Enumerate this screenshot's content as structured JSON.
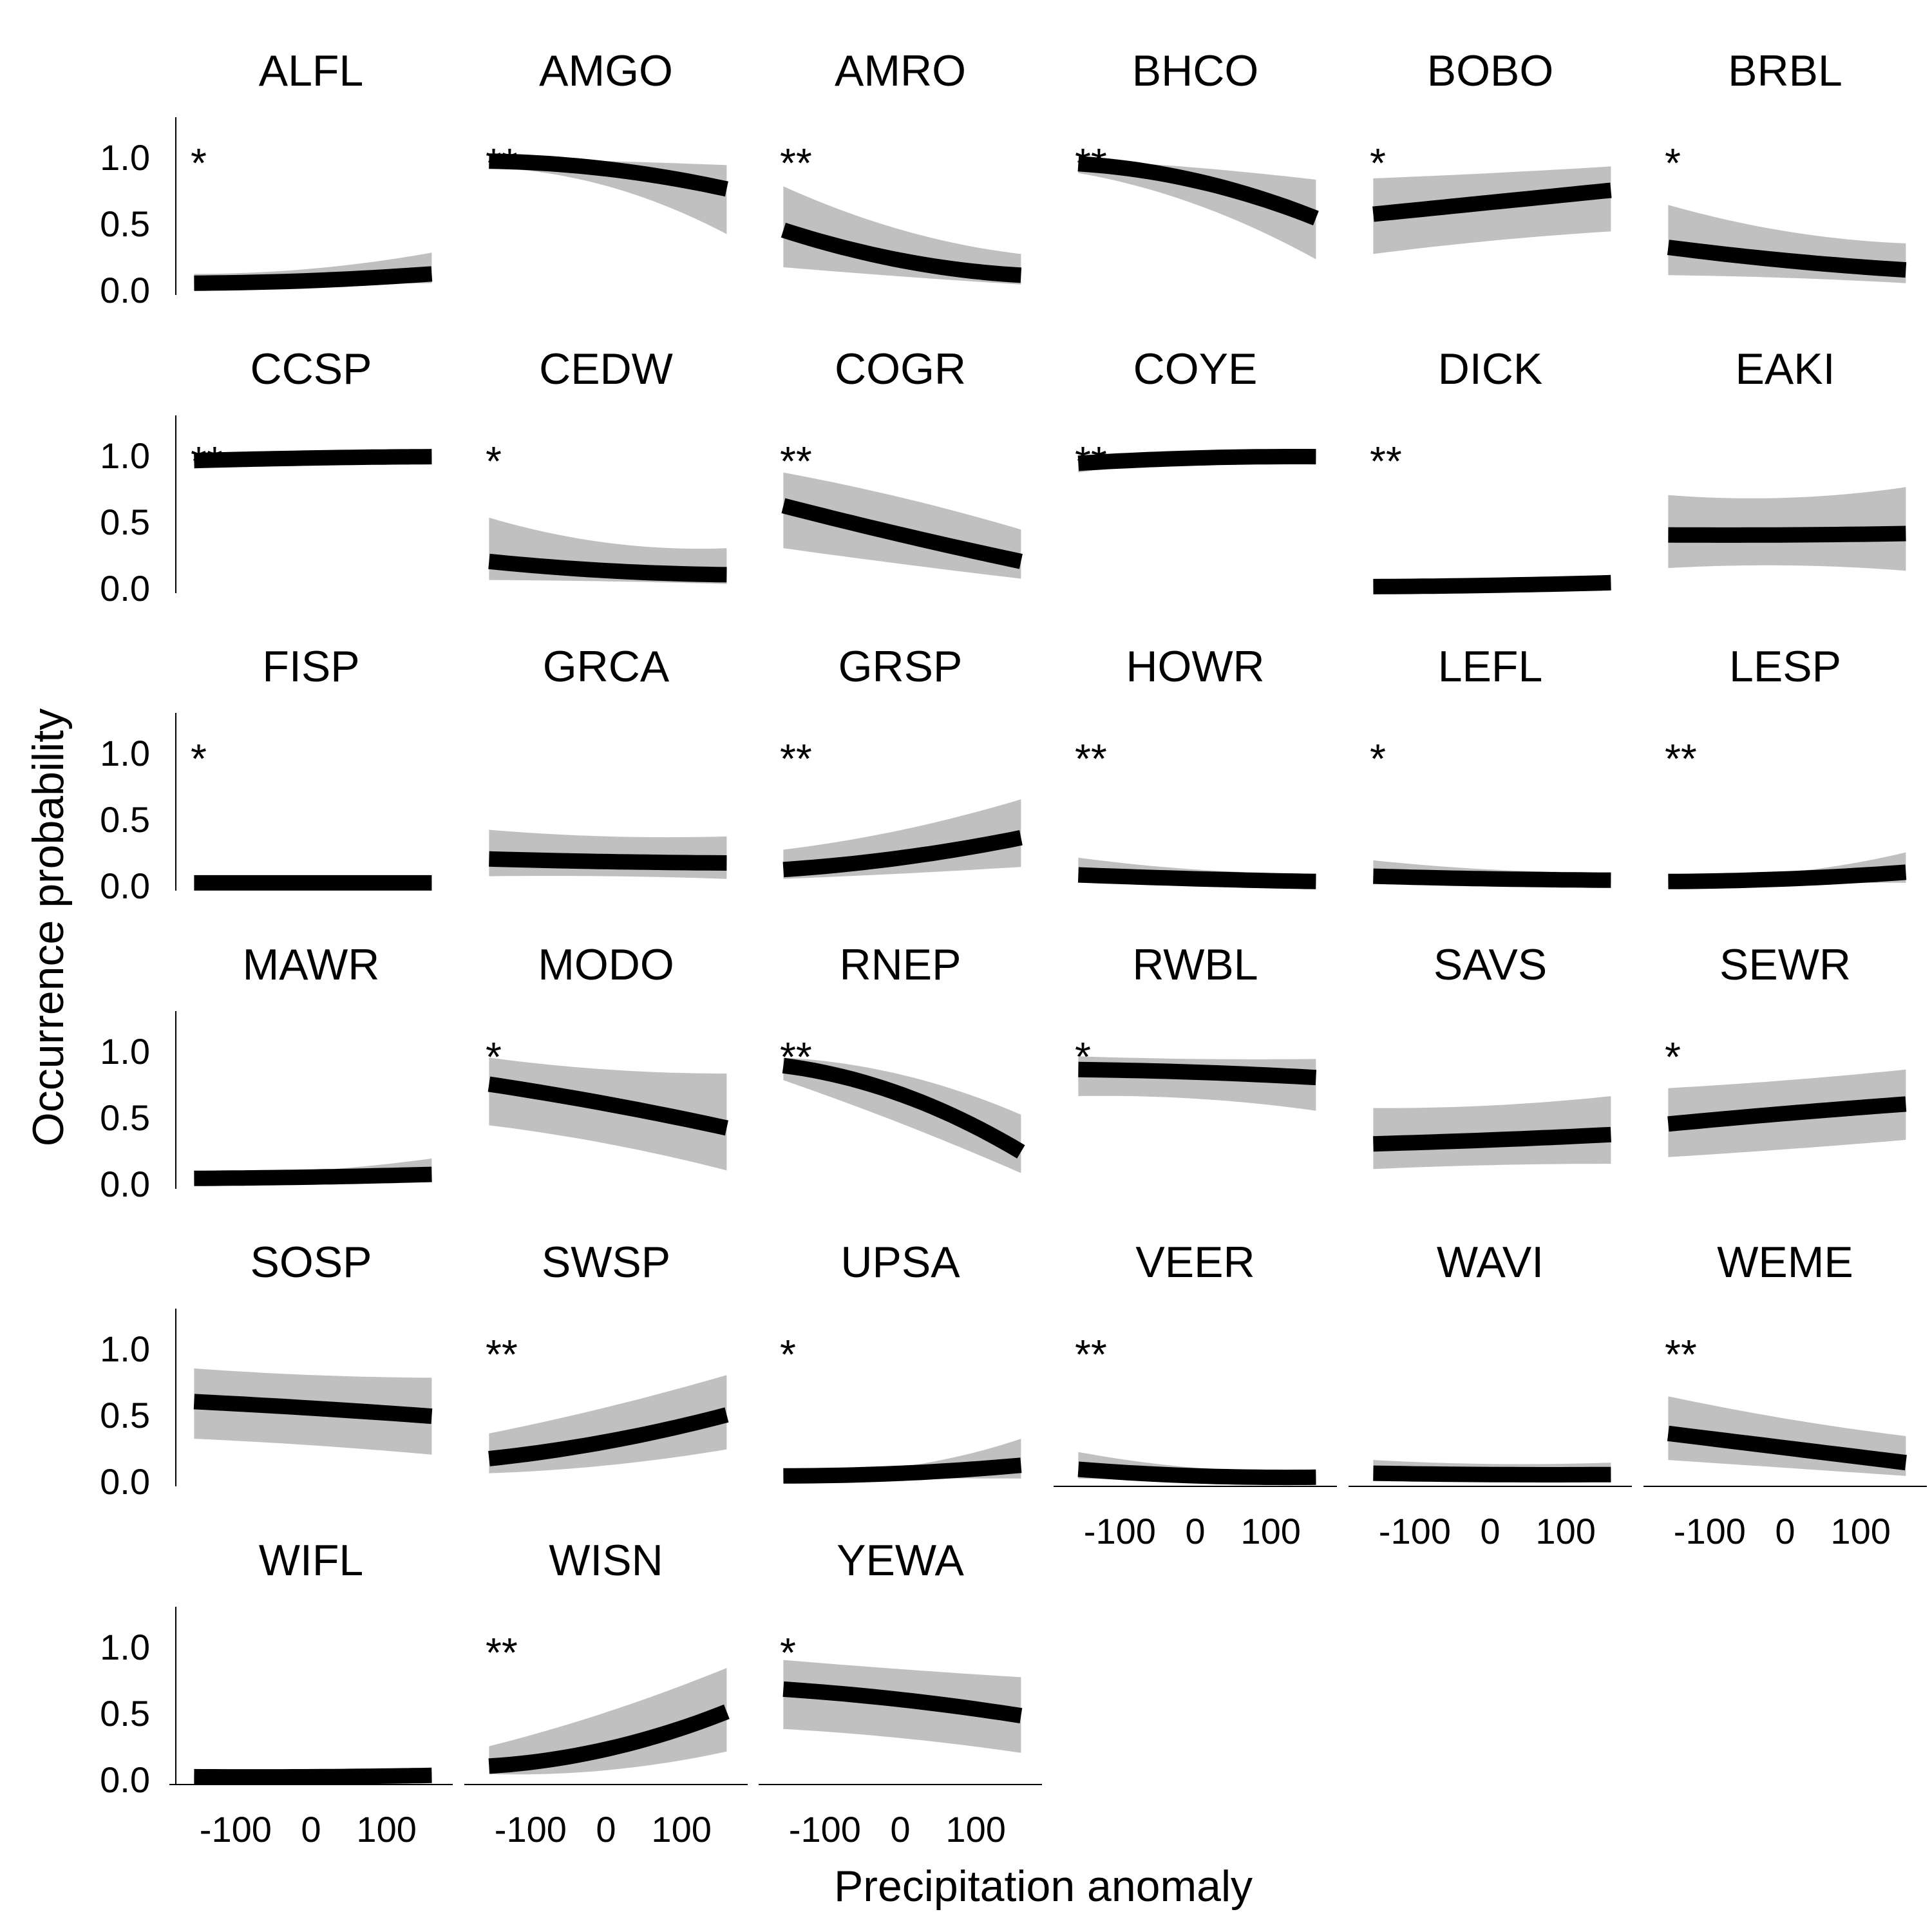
{
  "chart_data": {
    "type": "line",
    "layout": "small-multiples",
    "xlabel": "Precipitation anomaly",
    "ylabel": "Occurrence probability",
    "xlim": [
      -175,
      175
    ],
    "ylim": [
      0,
      1.25
    ],
    "x_ticks": [
      -100,
      0,
      100
    ],
    "x_tick_labels": [
      "-100",
      "0",
      "100"
    ],
    "y_ticks": [
      0,
      0.5,
      1.0
    ],
    "y_tick_labels": [
      "0.0",
      "0.5",
      "1.0"
    ],
    "x_range_plotted": [
      -155,
      160
    ],
    "colors": {
      "fit": "#000000",
      "confidence_band": "#c0c0c0"
    },
    "panels": [
      {
        "species": "ALFL",
        "sig": "*",
        "fit": [
          0.05,
          0.07,
          0.12
        ],
        "lower": [
          0.03,
          0.04,
          0.05
        ],
        "upper": [
          0.12,
          0.16,
          0.28
        ]
      },
      {
        "species": "AMGO",
        "sig": "**",
        "fit": [
          0.97,
          0.91,
          0.76
        ],
        "lower": [
          0.92,
          0.78,
          0.42
        ],
        "upper": [
          0.99,
          0.97,
          0.94
        ]
      },
      {
        "species": "AMRO",
        "sig": "**",
        "fit": [
          0.45,
          0.22,
          0.11
        ],
        "lower": [
          0.17,
          0.1,
          0.04
        ],
        "upper": [
          0.78,
          0.45,
          0.27
        ]
      },
      {
        "species": "BHCO",
        "sig": "**",
        "fit": [
          0.95,
          0.82,
          0.54
        ],
        "lower": [
          0.88,
          0.64,
          0.23
        ],
        "upper": [
          0.98,
          0.92,
          0.83
        ]
      },
      {
        "species": "BOBO",
        "sig": "*",
        "fit": [
          0.57,
          0.66,
          0.75
        ],
        "lower": [
          0.27,
          0.37,
          0.44
        ],
        "upper": [
          0.84,
          0.88,
          0.93
        ]
      },
      {
        "species": "BRBL",
        "sig": "*",
        "fit": [
          0.32,
          0.22,
          0.15
        ],
        "lower": [
          0.11,
          0.09,
          0.05
        ],
        "upper": [
          0.64,
          0.44,
          0.35
        ]
      },
      {
        "species": "CCSP",
        "sig": "**",
        "fit": [
          0.96,
          0.98,
          0.99
        ],
        "lower": [
          0.92,
          0.96,
          0.97
        ],
        "upper": [
          0.98,
          0.99,
          1.0
        ]
      },
      {
        "species": "CEDW",
        "sig": "*",
        "fit": [
          0.2,
          0.13,
          0.1
        ],
        "lower": [
          0.06,
          0.05,
          0.03
        ],
        "upper": [
          0.53,
          0.34,
          0.3
        ]
      },
      {
        "species": "COGR",
        "sig": "**",
        "fit": [
          0.62,
          0.4,
          0.2
        ],
        "lower": [
          0.3,
          0.18,
          0.07
        ],
        "upper": [
          0.87,
          0.68,
          0.44
        ]
      },
      {
        "species": "COYE",
        "sig": "**",
        "fit": [
          0.94,
          0.98,
          0.99
        ],
        "lower": [
          0.87,
          0.96,
          0.97
        ],
        "upper": [
          0.97,
          0.99,
          1.0
        ]
      },
      {
        "species": "DICK",
        "sig": "**",
        "fit": [
          0.01,
          0.02,
          0.04
        ],
        "lower": [
          0.0,
          0.01,
          0.01
        ],
        "upper": [
          0.03,
          0.04,
          0.08
        ]
      },
      {
        "species": "EAKI",
        "sig": "",
        "fit": [
          0.4,
          0.4,
          0.41
        ],
        "lower": [
          0.15,
          0.17,
          0.13
        ],
        "upper": [
          0.7,
          0.68,
          0.76
        ]
      },
      {
        "species": "FISP",
        "sig": "*",
        "fit": [
          0.02,
          0.02,
          0.02
        ],
        "lower": [
          0.0,
          0.0,
          0.0
        ],
        "upper": [
          0.05,
          0.04,
          0.05
        ]
      },
      {
        "species": "GRCA",
        "sig": "",
        "fit": [
          0.2,
          0.18,
          0.17
        ],
        "lower": [
          0.07,
          0.07,
          0.05
        ],
        "upper": [
          0.42,
          0.37,
          0.37
        ]
      },
      {
        "species": "GRSP",
        "sig": "**",
        "fit": [
          0.12,
          0.21,
          0.36
        ],
        "lower": [
          0.05,
          0.09,
          0.14
        ],
        "upper": [
          0.27,
          0.42,
          0.65
        ]
      },
      {
        "species": "HOWR",
        "sig": "**",
        "fit": [
          0.08,
          0.05,
          0.03
        ],
        "lower": [
          0.02,
          0.02,
          0.01
        ],
        "upper": [
          0.21,
          0.12,
          0.09
        ]
      },
      {
        "species": "LEFL",
        "sig": "*",
        "fit": [
          0.07,
          0.05,
          0.04
        ],
        "lower": [
          0.02,
          0.02,
          0.01
        ],
        "upper": [
          0.19,
          0.12,
          0.1
        ]
      },
      {
        "species": "LESP",
        "sig": "**",
        "fit": [
          0.03,
          0.05,
          0.1
        ],
        "lower": [
          0.01,
          0.02,
          0.02
        ],
        "upper": [
          0.08,
          0.1,
          0.25
        ]
      },
      {
        "species": "MAWR",
        "sig": "",
        "fit": [
          0.04,
          0.05,
          0.07
        ],
        "lower": [
          0.02,
          0.02,
          0.02
        ],
        "upper": [
          0.08,
          0.1,
          0.19
        ]
      },
      {
        "species": "MODO",
        "sig": "*",
        "fit": [
          0.75,
          0.6,
          0.42
        ],
        "lower": [
          0.44,
          0.3,
          0.1
        ],
        "upper": [
          0.95,
          0.86,
          0.83
        ]
      },
      {
        "species": "RNEP",
        "sig": "**",
        "fit": [
          0.89,
          0.67,
          0.24
        ],
        "lower": [
          0.78,
          0.45,
          0.08
        ],
        "upper": [
          0.95,
          0.82,
          0.52
        ]
      },
      {
        "species": "RWBL",
        "sig": "*",
        "fit": [
          0.86,
          0.84,
          0.8
        ],
        "lower": [
          0.66,
          0.64,
          0.55
        ],
        "upper": [
          0.96,
          0.94,
          0.94
        ]
      },
      {
        "species": "SAVS",
        "sig": "",
        "fit": [
          0.3,
          0.33,
          0.37
        ],
        "lower": [
          0.11,
          0.14,
          0.15
        ],
        "upper": [
          0.57,
          0.59,
          0.66
        ]
      },
      {
        "species": "SEWR",
        "sig": "*",
        "fit": [
          0.45,
          0.53,
          0.6
        ],
        "lower": [
          0.2,
          0.26,
          0.33
        ],
        "upper": [
          0.72,
          0.78,
          0.86
        ]
      },
      {
        "species": "SOSP",
        "sig": "",
        "fit": [
          0.6,
          0.55,
          0.49
        ],
        "lower": [
          0.32,
          0.27,
          0.2
        ],
        "upper": [
          0.85,
          0.8,
          0.78
        ]
      },
      {
        "species": "SWSP",
        "sig": "**",
        "fit": [
          0.17,
          0.3,
          0.5
        ],
        "lower": [
          0.06,
          0.12,
          0.24
        ],
        "upper": [
          0.36,
          0.56,
          0.8
        ]
      },
      {
        "species": "UPSA",
        "sig": "*",
        "fit": [
          0.04,
          0.06,
          0.12
        ],
        "lower": [
          0.01,
          0.02,
          0.02
        ],
        "upper": [
          0.08,
          0.11,
          0.32
        ]
      },
      {
        "species": "VEER",
        "sig": "**",
        "fit": [
          0.09,
          0.04,
          0.03
        ],
        "lower": [
          0.02,
          0.01,
          0.01
        ],
        "upper": [
          0.22,
          0.1,
          0.07
        ]
      },
      {
        "species": "WAVI",
        "sig": "",
        "fit": [
          0.06,
          0.05,
          0.05
        ],
        "lower": [
          0.02,
          0.02,
          0.01
        ],
        "upper": [
          0.16,
          0.13,
          0.14
        ]
      },
      {
        "species": "WEME",
        "sig": "**",
        "fit": [
          0.36,
          0.25,
          0.14
        ],
        "lower": [
          0.16,
          0.1,
          0.04
        ],
        "upper": [
          0.64,
          0.47,
          0.34
        ]
      },
      {
        "species": "WIFL",
        "sig": "",
        "fit": [
          0.02,
          0.02,
          0.03
        ],
        "lower": [
          0.0,
          0.0,
          0.0
        ],
        "upper": [
          0.04,
          0.05,
          0.06
        ]
      },
      {
        "species": "WISN",
        "sig": "**",
        "fit": [
          0.1,
          0.23,
          0.51
        ],
        "lower": [
          0.04,
          0.07,
          0.21
        ],
        "upper": [
          0.25,
          0.51,
          0.84
        ]
      },
      {
        "species": "YEWA",
        "sig": "*",
        "fit": [
          0.68,
          0.6,
          0.48
        ],
        "lower": [
          0.38,
          0.31,
          0.2
        ],
        "upper": [
          0.9,
          0.83,
          0.77
        ]
      }
    ]
  }
}
